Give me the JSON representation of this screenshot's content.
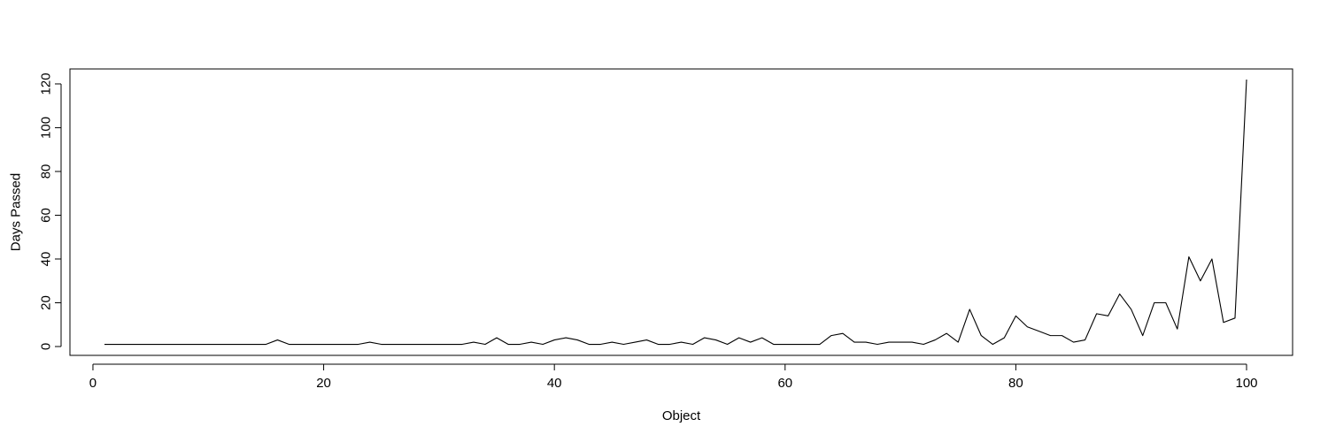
{
  "chart_data": {
    "type": "line",
    "title": "",
    "xlabel": "Object",
    "ylabel": "Days Passed",
    "xlim": [
      1,
      100
    ],
    "ylim": [
      0,
      122
    ],
    "x_ticks": [
      0,
      20,
      40,
      60,
      80,
      100
    ],
    "y_ticks": [
      0,
      20,
      40,
      60,
      80,
      100,
      120
    ],
    "grid": false,
    "legend": "none",
    "line_color": "#000000",
    "x": [
      1,
      2,
      3,
      4,
      5,
      6,
      7,
      8,
      9,
      10,
      11,
      12,
      13,
      14,
      15,
      16,
      17,
      18,
      19,
      20,
      21,
      22,
      23,
      24,
      25,
      26,
      27,
      28,
      29,
      30,
      31,
      32,
      33,
      34,
      35,
      36,
      37,
      38,
      39,
      40,
      41,
      42,
      43,
      44,
      45,
      46,
      47,
      48,
      49,
      50,
      51,
      52,
      53,
      54,
      55,
      56,
      57,
      58,
      59,
      60,
      61,
      62,
      63,
      64,
      65,
      66,
      67,
      68,
      69,
      70,
      71,
      72,
      73,
      74,
      75,
      76,
      77,
      78,
      79,
      80,
      81,
      82,
      83,
      84,
      85,
      86,
      87,
      88,
      89,
      90,
      91,
      92,
      93,
      94,
      95,
      96,
      97,
      98,
      99,
      100
    ],
    "series": [
      {
        "values": [
          1,
          1,
          1,
          1,
          1,
          1,
          1,
          1,
          1,
          1,
          1,
          1,
          1,
          1,
          1,
          3,
          1,
          1,
          1,
          1,
          1,
          1,
          1,
          2,
          1,
          1,
          1,
          1,
          1,
          1,
          1,
          1,
          2,
          1,
          4,
          1,
          1,
          2,
          1,
          3,
          4,
          3,
          1,
          1,
          2,
          1,
          2,
          3,
          1,
          1,
          2,
          1,
          4,
          3,
          1,
          4,
          2,
          4,
          1,
          1,
          1,
          1,
          1,
          5,
          6,
          2,
          2,
          1,
          2,
          2,
          2,
          1,
          3,
          6,
          2,
          17,
          5,
          1,
          4,
          14,
          9,
          7,
          5,
          5,
          2,
          3,
          15,
          14,
          24,
          17,
          5,
          20,
          20,
          8,
          41,
          30,
          40,
          11,
          13,
          122
        ]
      }
    ]
  }
}
